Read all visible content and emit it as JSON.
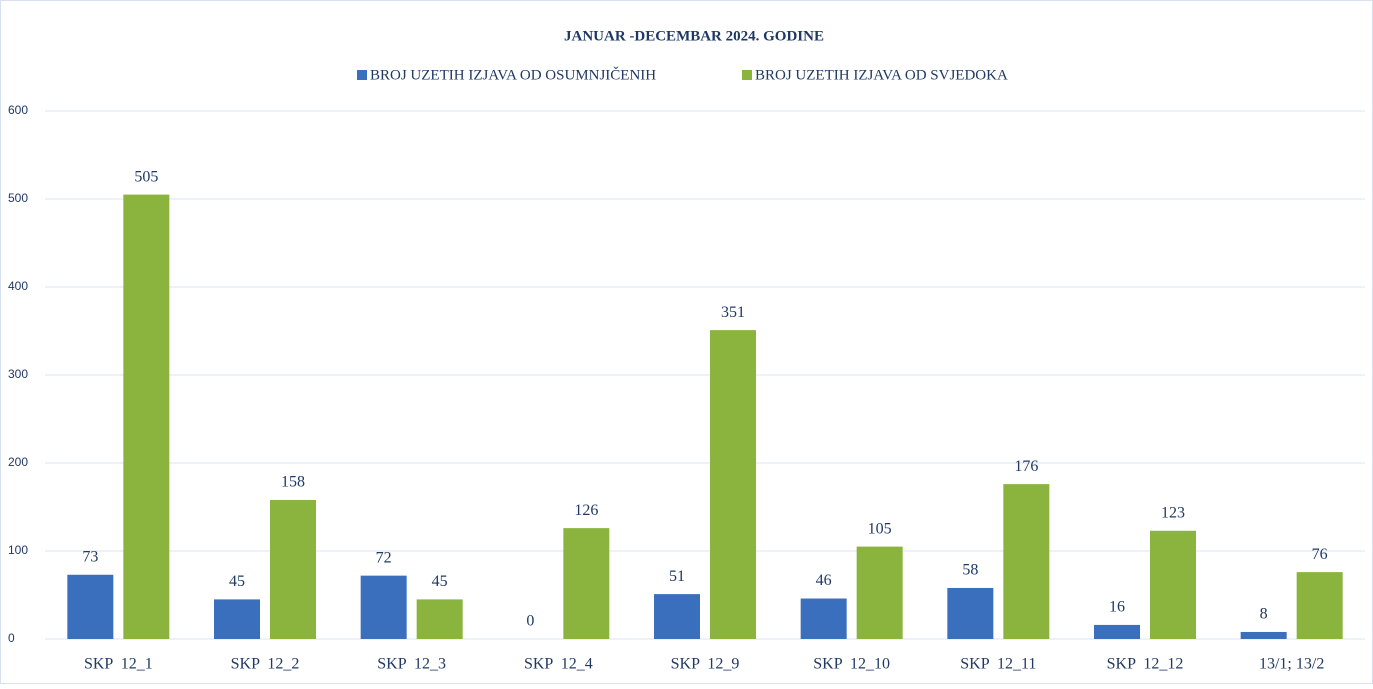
{
  "chart_data": {
    "type": "bar",
    "title": "JANUAR -DECEMBAR 2024. GODINE",
    "categories": [
      "SKP  12_1",
      "SKP  12_2",
      "SKP  12_3",
      "SKP  12_4",
      "SKP  12_9",
      "SKP  12_10",
      "SKP  12_11",
      "SKP  12_12",
      "13/1; 13/2"
    ],
    "series": [
      {
        "name": "BROJ UZETIH IZJAVA OD OSUMNJIČENIH",
        "color": "#3a6fbd",
        "values": [
          73,
          45,
          72,
          0,
          51,
          46,
          58,
          16,
          8
        ]
      },
      {
        "name": "BROJ UZETIH IZJAVA OD SVJEDOKA",
        "color": "#8bb43f",
        "values": [
          505,
          158,
          45,
          126,
          351,
          105,
          176,
          123,
          76
        ]
      }
    ],
    "ylim": [
      0,
      600
    ],
    "yticks": [
      0,
      100,
      200,
      300,
      400,
      500,
      600
    ],
    "grid": true,
    "legend": "top"
  }
}
